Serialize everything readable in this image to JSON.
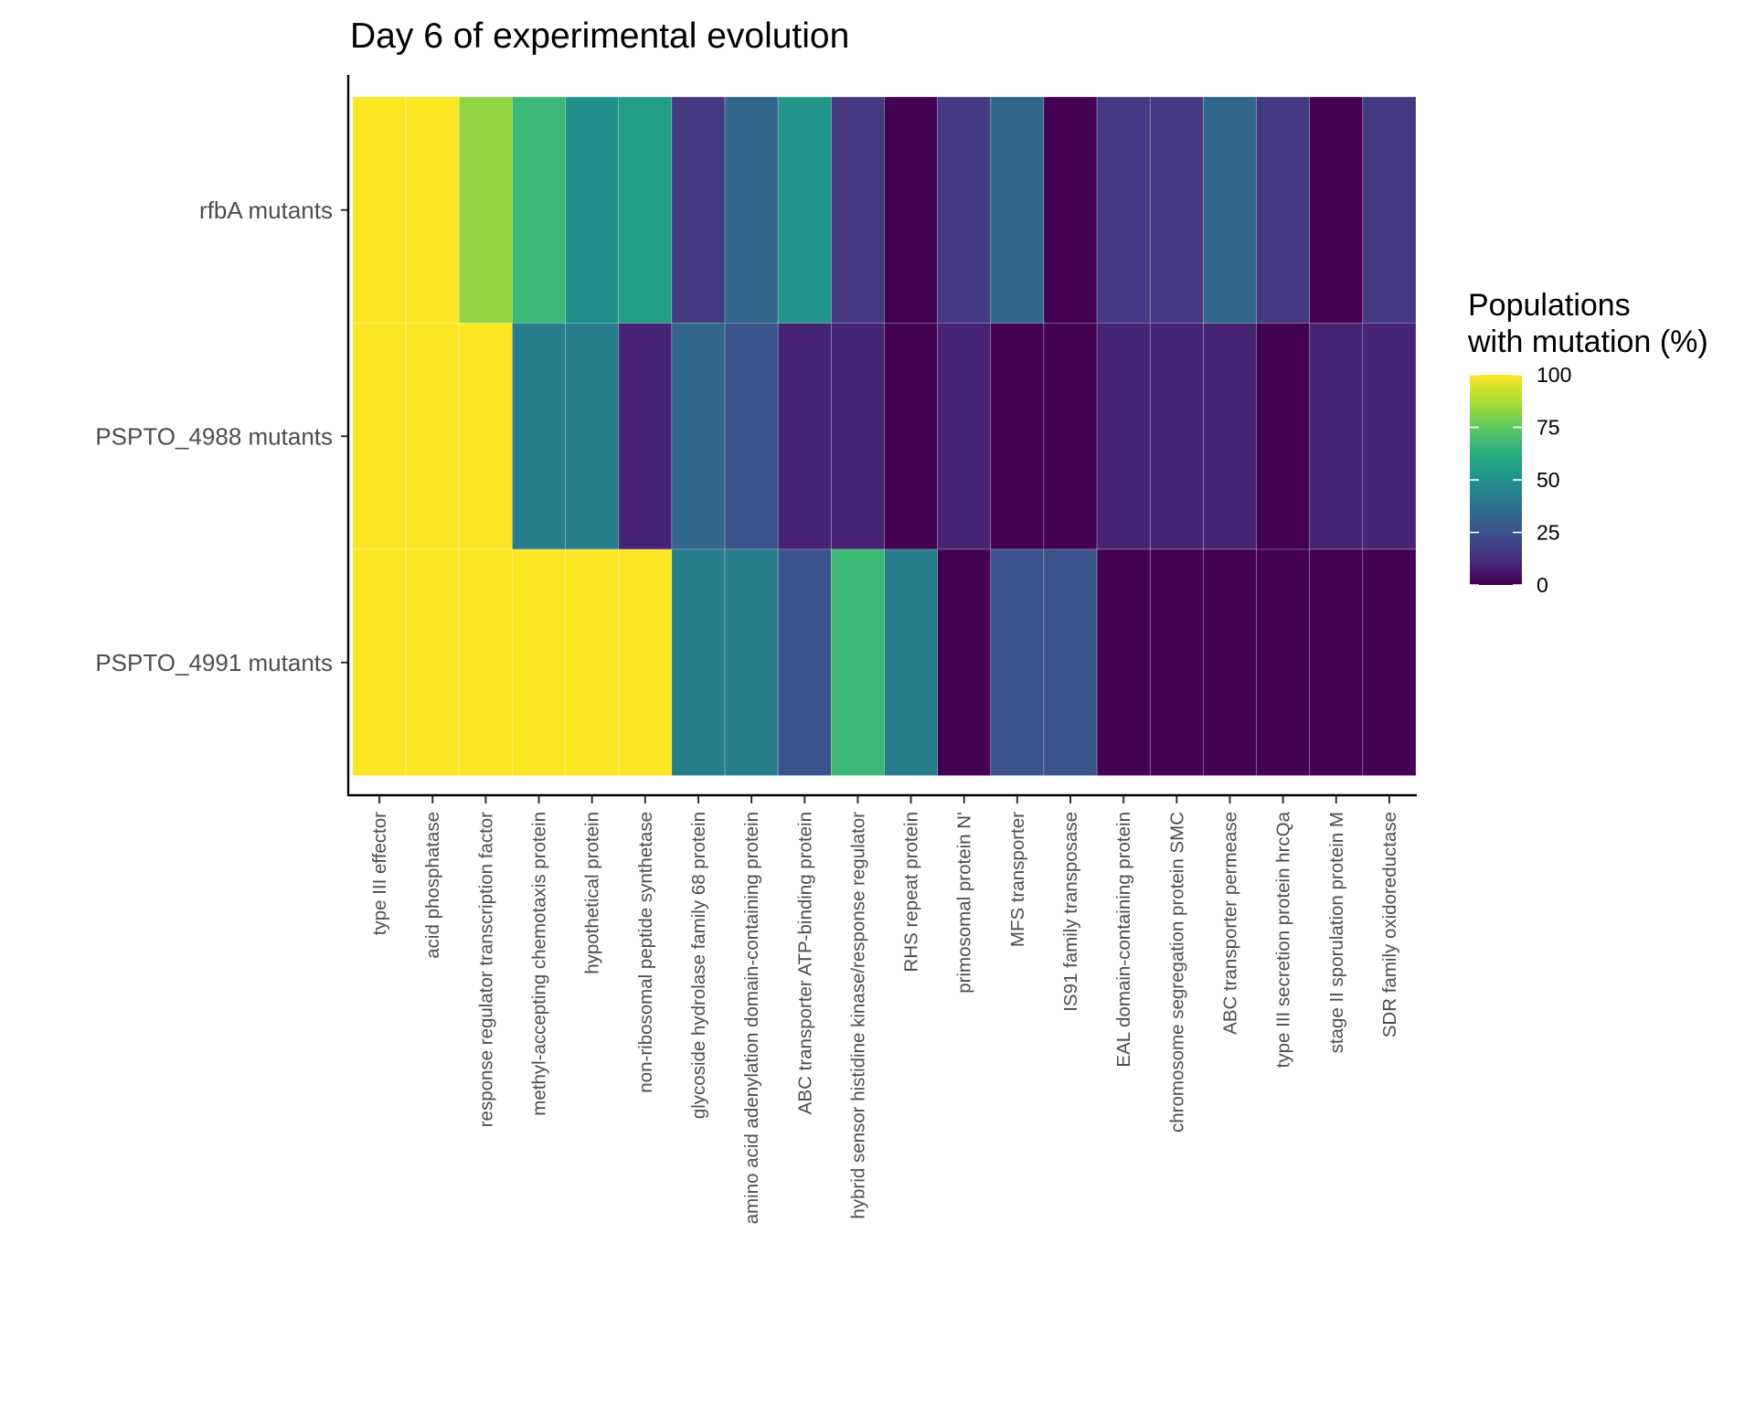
{
  "chart_data": {
    "type": "heatmap",
    "title": "Day 6 of experimental evolution",
    "xlabel": "",
    "ylabel": "",
    "x_categories": [
      "type III effector",
      "acid phosphatase",
      "response regulator transcription factor",
      "methyl-accepting chemotaxis protein",
      "hypothetical protein",
      "non-ribosomal peptide synthetase",
      "glycoside hydrolase family 68 protein",
      "amino acid adenylation domain-containing protein",
      "ABC transporter ATP-binding protein",
      "hybrid sensor histidine kinase/response regulator",
      "RHS repeat protein",
      "primosomal protein N'",
      "MFS transporter",
      "IS91 family transposase",
      "EAL domain-containing protein",
      "chromosome segregation protein SMC",
      "ABC transporter permease",
      "type III secretion protein hrcQa",
      "stage II sporulation protein M",
      "SDR family oxidoreductase"
    ],
    "y_categories": [
      "rfbA mutants",
      "PSPTO_4988 mutants",
      "PSPTO_4991 mutants"
    ],
    "values": [
      [
        100,
        100,
        83,
        67,
        50,
        55,
        17,
        33,
        52,
        17,
        0,
        17,
        33,
        0,
        17,
        17,
        33,
        17,
        0,
        17
      ],
      [
        100,
        100,
        100,
        42,
        42,
        10,
        33,
        25,
        10,
        10,
        0,
        10,
        0,
        0,
        10,
        10,
        10,
        0,
        10,
        10
      ],
      [
        100,
        100,
        100,
        100,
        100,
        100,
        42,
        42,
        25,
        67,
        42,
        0,
        25,
        25,
        0,
        0,
        0,
        0,
        0,
        0
      ]
    ],
    "color_scale": "viridis",
    "value_range": [
      0,
      100
    ],
    "legend": {
      "title_lines": [
        "Populations",
        "with mutation (%)"
      ],
      "ticks": [
        0,
        25,
        50,
        75,
        100
      ],
      "position": "right"
    },
    "grid": false
  }
}
